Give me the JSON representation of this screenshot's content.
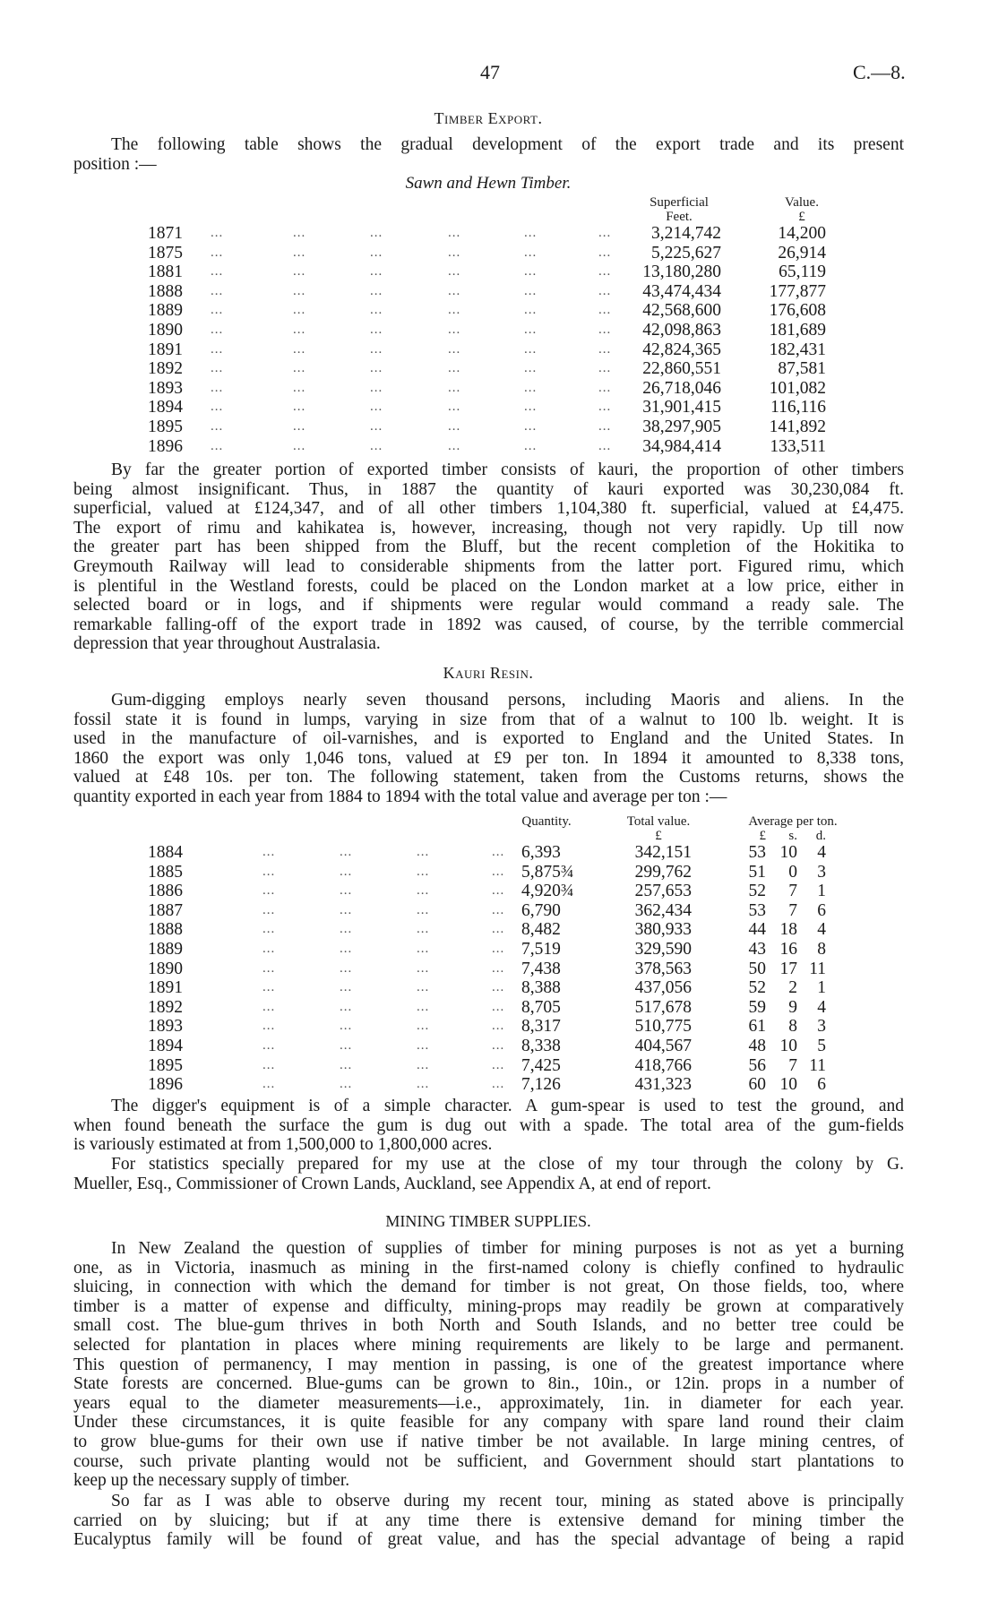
{
  "header": {
    "page_number": "47",
    "doc_ref": "C.—8."
  },
  "timber_export": {
    "title": "Timber Export.",
    "intro": [
      "The following table shows the gradual development of the export trade and its present",
      "position :—"
    ],
    "table_title": "Sawn and Hewn Timber.",
    "columns": {
      "feet_1": "Superficial",
      "feet_2": "Feet.",
      "value_1": "Value.",
      "value_2": "£"
    },
    "rows": [
      {
        "year": "1871",
        "feet": "3,214,742",
        "value": "14,200"
      },
      {
        "year": "1875",
        "feet": "5,225,627",
        "value": "26,914"
      },
      {
        "year": "1881",
        "feet": "13,180,280",
        "value": "65,119"
      },
      {
        "year": "1888",
        "feet": "43,474,434",
        "value": "177,877"
      },
      {
        "year": "1889",
        "feet": "42,568,600",
        "value": "176,608"
      },
      {
        "year": "1890",
        "feet": "42,098,863",
        "value": "181,689"
      },
      {
        "year": "1891",
        "feet": "42,824,365",
        "value": "182,431"
      },
      {
        "year": "1892",
        "feet": "22,860,551",
        "value": "87,581"
      },
      {
        "year": "1893",
        "feet": "26,718,046",
        "value": "101,082"
      },
      {
        "year": "1894",
        "feet": "31,901,415",
        "value": "116,116"
      },
      {
        "year": "1895",
        "feet": "38,297,905",
        "value": "141,892"
      },
      {
        "year": "1896",
        "feet": "34,984,414",
        "value": "133,511"
      }
    ],
    "paragraph": [
      "By far the greater portion of exported timber consists of kauri, the proportion of other timbers",
      "being almost insignificant.  Thus, in 1887 the quantity of kauri exported was 30,230,084 ft.",
      "superficial, valued at £124,347, and of all other timbers 1,104,380 ft. superficial, valued at £4,475.",
      "The export of rimu and kahikatea is, however, increasing, though not very rapidly.  Up till now",
      "the greater part has been shipped from the Bluff, but the recent completion of the Hokitika to",
      "Greymouth Railway will lead to considerable shipments from the latter port.  Figured rimu, which",
      "is plentiful in the Westland forests, could be placed on the London market at a low price, either in",
      "selected board or in logs, and if shipments were regular would command a ready sale.  The",
      "remarkable falling-off of the export trade in 1892 was caused, of course, by the terrible commercial",
      "depression that year throughout Australasia."
    ]
  },
  "kauri_resin": {
    "title": "Kauri Resin.",
    "paragraph": [
      "Gum-digging employs nearly seven thousand persons, including Maoris and aliens.  In the",
      "fossil state it is found in lumps, varying in size from that of a walnut to 100 lb. weight.  It is",
      "used in the manufacture of oil-varnishes, and is exported to England and the United States.  In",
      "1860 the export was only 1,046 tons, valued at £9 per ton.  In 1894 it amounted to 8,338 tons,",
      "valued at £48 10s. per ton.  The following statement, taken from the Customs returns, shows the",
      "quantity exported in each year from 1884 to 1894 with the total value and average per ton :—"
    ],
    "columns": {
      "quantity": "Quantity.",
      "total_1": "Total value.",
      "total_2": "£",
      "avg": "Average per ton.",
      "pounds": "£",
      "shillings": "s.",
      "pence": "d."
    },
    "rows": [
      {
        "year": "1884",
        "quantity": "6,393",
        "total": "342,151",
        "l": "53",
        "s": "10",
        "d": "4"
      },
      {
        "year": "1885",
        "quantity": "5,875¾",
        "total": "299,762",
        "l": "51",
        "s": "0",
        "d": "3"
      },
      {
        "year": "1886",
        "quantity": "4,920¾",
        "total": "257,653",
        "l": "52",
        "s": "7",
        "d": "1"
      },
      {
        "year": "1887",
        "quantity": "6,790",
        "total": "362,434",
        "l": "53",
        "s": "7",
        "d": "6"
      },
      {
        "year": "1888",
        "quantity": "8,482",
        "total": "380,933",
        "l": "44",
        "s": "18",
        "d": "4"
      },
      {
        "year": "1889",
        "quantity": "7,519",
        "total": "329,590",
        "l": "43",
        "s": "16",
        "d": "8"
      },
      {
        "year": "1890",
        "quantity": "7,438",
        "total": "378,563",
        "l": "50",
        "s": "17",
        "d": "11"
      },
      {
        "year": "1891",
        "quantity": "8,388",
        "total": "437,056",
        "l": "52",
        "s": "2",
        "d": "1"
      },
      {
        "year": "1892",
        "quantity": "8,705",
        "total": "517,678",
        "l": "59",
        "s": "9",
        "d": "4"
      },
      {
        "year": "1893",
        "quantity": "8,317",
        "total": "510,775",
        "l": "61",
        "s": "8",
        "d": "3"
      },
      {
        "year": "1894",
        "quantity": "8,338",
        "total": "404,567",
        "l": "48",
        "s": "10",
        "d": "5"
      },
      {
        "year": "1895",
        "quantity": "7,425",
        "total": "418,766",
        "l": "56",
        "s": "7",
        "d": "11"
      },
      {
        "year": "1896",
        "quantity": "7,126",
        "total": "431,323",
        "l": "60",
        "s": "10",
        "d": "6"
      }
    ],
    "paragraph_2": [
      "The digger's equipment is of a simple character.  A gum-spear is used to test the ground, and",
      "when found beneath the surface the gum is dug out with a spade.  The total area of the gum-fields",
      "is variously estimated at from 1,500,000 to 1,800,000 acres."
    ],
    "paragraph_3": [
      "For statistics specially prepared for my use at the close of my tour through the colony by G.",
      "Mueller, Esq., Commissioner of Crown Lands, Auckland, see Appendix A, at end of report."
    ]
  },
  "mining_timber": {
    "title": "MINING TIMBER SUPPLIES.",
    "paragraph": [
      "In New Zealand the question of supplies of timber for mining purposes is not as yet a burning",
      "one, as in Victoria, inasmuch as mining in the first-named colony is chiefly confined to hydraulic",
      "sluicing, in connection with which the demand for timber is not great,  On those fields, too, where",
      "timber is a matter of expense and difficulty, mining-props may readily be grown at comparatively",
      "small cost.  The blue-gum thrives in both North and South Islands, and no better tree could be",
      "selected for plantation in places where mining requirements are likely to be large and permanent.",
      "This question of permanency, I may mention in passing, is one of the greatest importance where",
      "State forests are concerned.  Blue-gums can be grown to 8in., 10in., or 12in. props in a number of",
      "years equal to the diameter measurements—i.e., approximately, 1in. in diameter for each year.",
      "Under these circumstances, it is quite feasible for any company with spare land round their claim",
      "to grow blue-gums for their own use if native timber be not available.  In large mining centres, of",
      "course, such private planting would not be sufficient, and Government should start plantations to",
      "keep up the necessary supply of timber."
    ],
    "paragraph_2": [
      "So far as I was able to observe during my recent tour, mining as stated above is principally",
      "carried on by sluicing; but if at any time there is extensive demand for mining timber the",
      "Eucalyptus family will be found of great value, and has the special advantage of being a rapid"
    ]
  }
}
